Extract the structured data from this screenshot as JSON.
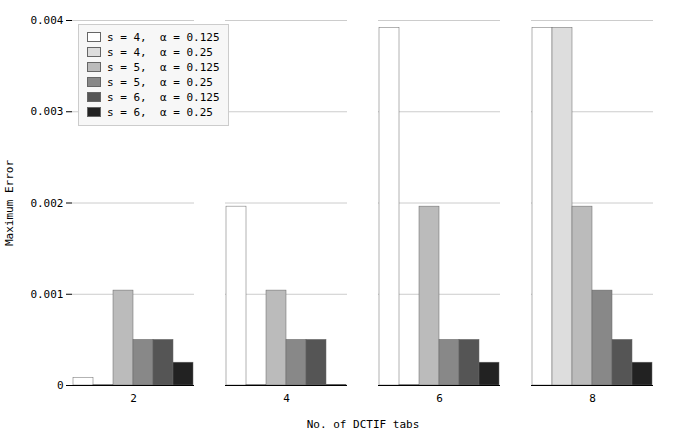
{
  "chart_data": {
    "type": "bar",
    "categories": [
      2,
      4,
      6,
      8
    ],
    "series": [
      {
        "name": "s = 4,  α = 0.125",
        "color": "#ffffff",
        "values": [
          8.5e-05,
          0.00196,
          0.00392,
          0.00392
        ]
      },
      {
        "name": "s = 4,  α = 0.25",
        "color": "#dddddd",
        "values": [
          5e-06,
          5e-06,
          5e-06,
          0.00392
        ]
      },
      {
        "name": "s = 5,  α = 0.125",
        "color": "#bbbbbb",
        "values": [
          0.00104,
          0.00104,
          0.00196,
          0.00196
        ]
      },
      {
        "name": "s = 5,  α = 0.25",
        "color": "#888888",
        "values": [
          0.0005,
          0.0005,
          0.0005,
          0.00104
        ]
      },
      {
        "name": "s = 6,  α = 0.125",
        "color": "#555555",
        "values": [
          0.0005,
          0.0005,
          0.0005,
          0.0005
        ]
      },
      {
        "name": "s = 6,  α = 0.25",
        "color": "#222222",
        "values": [
          0.00025,
          8e-06,
          0.00025,
          0.00025
        ]
      }
    ],
    "xlabel": "No. of DCTIF tabs",
    "ylabel": "Maximum Error",
    "ylim": [
      0,
      0.004
    ],
    "yticks": [
      0,
      0.001,
      0.002,
      0.003,
      0.004
    ],
    "grid": true,
    "legend": "upper left"
  }
}
